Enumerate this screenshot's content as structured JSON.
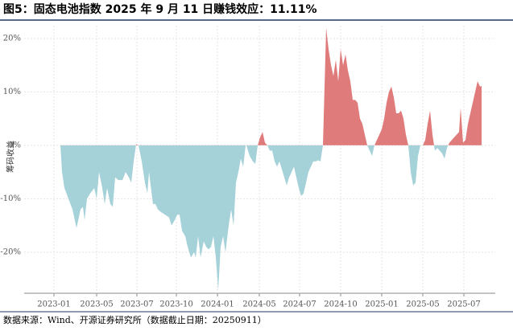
{
  "chart_data": {
    "type": "area",
    "title": "图5：固态电池指数 2025 年 9 月 11 日赚钱效应：11.11%",
    "y_label": "筹码收益",
    "source": "数据来源：Wind、开源证券研究所（数据截止日期：20250911）",
    "x": [
      8,
      10,
      13,
      18,
      23,
      28,
      33,
      36,
      38,
      41,
      45,
      50,
      53,
      56,
      60,
      63,
      66,
      70,
      73,
      76,
      80,
      85,
      89,
      93,
      96,
      99,
      102,
      105,
      109,
      113,
      116,
      118,
      123,
      126,
      129,
      133,
      138,
      143,
      146,
      150,
      153,
      156,
      159,
      163,
      166,
      170,
      174,
      176,
      179,
      182,
      186,
      189,
      192,
      195,
      198,
      201,
      204,
      207,
      210,
      213,
      217,
      220,
      223,
      226,
      229,
      232,
      235,
      238,
      239,
      243,
      247,
      250,
      253,
      256,
      259,
      262,
      265,
      268,
      271,
      274,
      277,
      280,
      283,
      286,
      289,
      292,
      295,
      298,
      301,
      304,
      307,
      310,
      313,
      316,
      319,
      322,
      325,
      328,
      331,
      334,
      338,
      341,
      344,
      347,
      350,
      353,
      356,
      359,
      362,
      365,
      368,
      371,
      374,
      377,
      380,
      383,
      386,
      389,
      392,
      395,
      398,
      401,
      404,
      407,
      410,
      413,
      416,
      419,
      422,
      425,
      428,
      431,
      434,
      437,
      440,
      443,
      446,
      449,
      452,
      455,
      458,
      461,
      464,
      467,
      470,
      473,
      476,
      479,
      482,
      485,
      488,
      491,
      494,
      497,
      500,
      503,
      505,
      508,
      511,
      514,
      517,
      520,
      523,
      526,
      529,
      531
    ],
    "values": [
      0,
      -5,
      -8,
      -10,
      -12,
      -15.5,
      -12,
      -11.5,
      -14,
      -10,
      -9,
      -8,
      -10,
      -5,
      -8,
      -11,
      -8,
      -11,
      -11.5,
      -6,
      -6.5,
      -6.5,
      -5,
      -6,
      -7,
      -3,
      0.2,
      0,
      -3,
      -7,
      -9,
      -5,
      -11,
      -11,
      -12,
      -12.5,
      -13,
      -13.5,
      -15,
      -14,
      -13,
      -13,
      -16,
      -17,
      -19,
      -21,
      -20,
      -21,
      -17,
      -21,
      -18,
      -19,
      -19.5,
      -19,
      -17,
      -21,
      -27,
      -19,
      -17,
      -20,
      -15,
      -12,
      -15,
      -7,
      -5,
      -2.5,
      -4,
      0,
      0,
      -2,
      -3,
      -3.5,
      0,
      1.5,
      2.5,
      0.5,
      0,
      -1,
      -1,
      -3,
      -4,
      -3,
      -4.5,
      -6,
      -7.5,
      -6,
      -5,
      -4,
      -6,
      -8,
      -9.5,
      -9,
      -7,
      -5,
      -4,
      -3,
      -3,
      -2.8,
      -3,
      0,
      22,
      18,
      15,
      13,
      16,
      12,
      18,
      15,
      17,
      14,
      12,
      8.5,
      8.5,
      8,
      5,
      4,
      2,
      0,
      -1,
      -2,
      0,
      1,
      2,
      3,
      5,
      8,
      10,
      11,
      9,
      6,
      6,
      6.5,
      5,
      2,
      0,
      -5,
      -7.5,
      -7,
      -2,
      0,
      0,
      1,
      4,
      6.5,
      2,
      -1,
      -0.5,
      -1,
      -1.5,
      -2.5,
      -0.5,
      0.5,
      1,
      1.5,
      2,
      2.5,
      7,
      0.5,
      1,
      4,
      6,
      8,
      10,
      12,
      11,
      11.11
    ],
    "positive_color": "#e07b7b",
    "negative_color": "#a5d1d9",
    "xlim": [
      -37,
      548
    ],
    "xticks": [
      {
        "value": 0,
        "label": "2023-01"
      },
      {
        "value": 53,
        "label": "2023-05"
      },
      {
        "value": 103,
        "label": "2023-07"
      },
      {
        "value": 152,
        "label": "2023-10"
      },
      {
        "value": 203,
        "label": "2024-01"
      },
      {
        "value": 255,
        "label": "2024-05"
      },
      {
        "value": 305,
        "label": "2024-07"
      },
      {
        "value": 356,
        "label": "2024-10"
      },
      {
        "value": 407,
        "label": "2025-01"
      },
      {
        "value": 458,
        "label": "2025-05"
      },
      {
        "value": 509,
        "label": "2025-07"
      }
    ],
    "ylim": [
      -27.7,
      22.4
    ],
    "yticks": [
      {
        "value": -20,
        "label": "-20%"
      },
      {
        "value": -10,
        "label": "-10%"
      },
      {
        "value": 0,
        "label": "0%"
      },
      {
        "value": 10,
        "label": "10%"
      },
      {
        "value": 20,
        "label": "20%"
      }
    ],
    "grid": true
  }
}
